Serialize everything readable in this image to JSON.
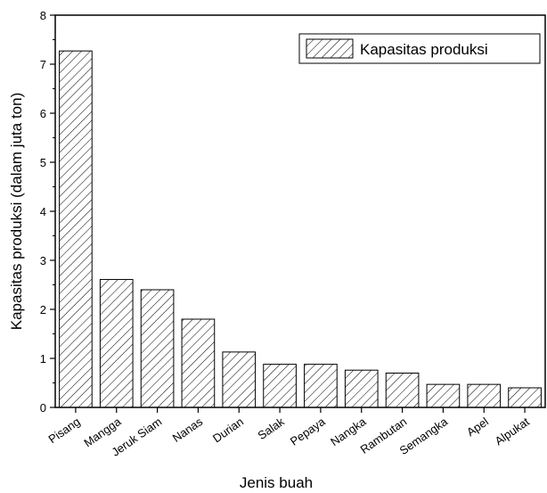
{
  "chart_data": {
    "type": "bar",
    "categories": [
      "Pisang",
      "Mangga",
      "Jeruk Siam",
      "Nanas",
      "Durian",
      "Salak",
      "Pepaya",
      "Nangka",
      "Rambutan",
      "Semangka",
      "Apel",
      "Alpukat"
    ],
    "series": [
      {
        "name": "Kapasitas produksi",
        "values": [
          7.27,
          2.61,
          2.4,
          1.8,
          1.13,
          0.88,
          0.88,
          0.76,
          0.7,
          0.47,
          0.47,
          0.4
        ]
      }
    ],
    "xlabel": "Jenis buah",
    "ylabel": "Kapasitas produksi (dalam juta ton)",
    "ylim": [
      0,
      8
    ],
    "yticks": [
      0,
      1,
      2,
      3,
      4,
      5,
      6,
      7,
      8
    ],
    "grid": false,
    "legend_position": "top-right",
    "bar_fill": "hatched",
    "colors": {
      "bar_stroke": "#000000",
      "hatch": "#000000",
      "background": "#ffffff"
    }
  }
}
